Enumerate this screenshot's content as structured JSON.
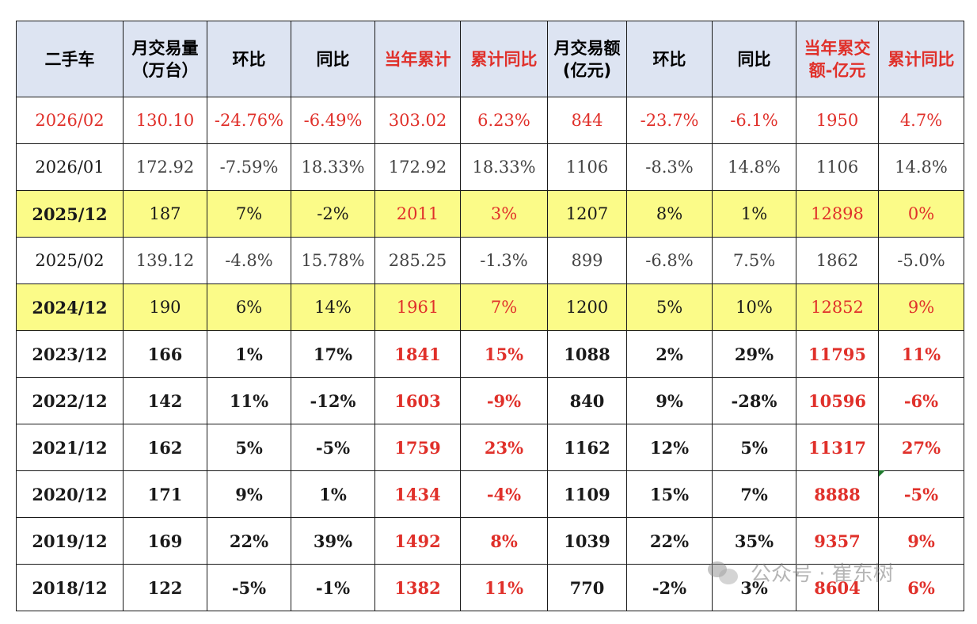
{
  "table": {
    "headers": [
      {
        "text": "二手车",
        "red": false
      },
      {
        "text": "月交易量\n（万台）",
        "red": false
      },
      {
        "text": "环比",
        "red": false
      },
      {
        "text": "同比",
        "red": false
      },
      {
        "text": "当年累计",
        "red": true
      },
      {
        "text": "累计同比",
        "red": true
      },
      {
        "text": "月交易额\n(亿元)",
        "red": false
      },
      {
        "text": "环比",
        "red": false
      },
      {
        "text": "同比",
        "red": false
      },
      {
        "text": "当年累交\n额-亿元",
        "red": true
      },
      {
        "text": "累计同比",
        "red": true
      }
    ],
    "rows": [
      {
        "style": "lightred",
        "cells": [
          "2026/02",
          "130.10",
          "-24.76%",
          "-6.49%",
          "303.02",
          "6.23%",
          "844",
          "-23.7%",
          "-6.1%",
          "1950",
          "4.7%"
        ]
      },
      {
        "style": "light",
        "cells": [
          "2026/01",
          "172.92",
          "-7.59%",
          "18.33%",
          "172.92",
          "18.33%",
          "1106",
          "-8.3%",
          "14.8%",
          "1106",
          "14.8%"
        ]
      },
      {
        "style": "hl",
        "cells": [
          "2025/12",
          "187",
          "7%",
          "-2%",
          "2011",
          "3%",
          "1207",
          "8%",
          "1%",
          "12898",
          "0%"
        ]
      },
      {
        "style": "light",
        "cells": [
          "2025/02",
          "139.12",
          "-4.8%",
          "15.78%",
          "285.25",
          "-1.3%",
          "899",
          "-6.8%",
          "7.5%",
          "1862",
          "-5.0%"
        ]
      },
      {
        "style": "hl",
        "cells": [
          "2024/12",
          "190",
          "6%",
          "14%",
          "1961",
          "7%",
          "1200",
          "5%",
          "10%",
          "12852",
          "9%"
        ]
      },
      {
        "style": "bold",
        "cells": [
          "2023/12",
          "166",
          "1%",
          "17%",
          "1841",
          "15%",
          "1088",
          "2%",
          "29%",
          "11795",
          "11%"
        ]
      },
      {
        "style": "bold",
        "cells": [
          "2022/12",
          "142",
          "11%",
          "-12%",
          "1603",
          "-9%",
          "840",
          "9%",
          "-28%",
          "10596",
          "-6%"
        ]
      },
      {
        "style": "bold",
        "cells": [
          "2021/12",
          "162",
          "5%",
          "-5%",
          "1759",
          "23%",
          "1162",
          "12%",
          "5%",
          "11317",
          "27%"
        ]
      },
      {
        "style": "bold",
        "cells": [
          "2020/12",
          "171",
          "9%",
          "1%",
          "1434",
          "-4%",
          "1109",
          "15%",
          "7%",
          "8888",
          "-5%"
        ]
      },
      {
        "style": "bold",
        "cells": [
          "2019/12",
          "169",
          "22%",
          "39%",
          "1492",
          "8%",
          "1039",
          "22%",
          "35%",
          "9357",
          "9%"
        ]
      },
      {
        "style": "bold",
        "cells": [
          "2018/12",
          "122",
          "-5%",
          "-1%",
          "1382",
          "11%",
          "770",
          "-2%",
          "3%",
          "8604",
          "6%"
        ]
      }
    ]
  },
  "watermark": {
    "icon": "wechat-icon",
    "text": "公众号 · 崔东树"
  },
  "colors": {
    "red": "#e0302a",
    "highlight": "#fbfb88",
    "header_bg": "#dde4f2"
  }
}
